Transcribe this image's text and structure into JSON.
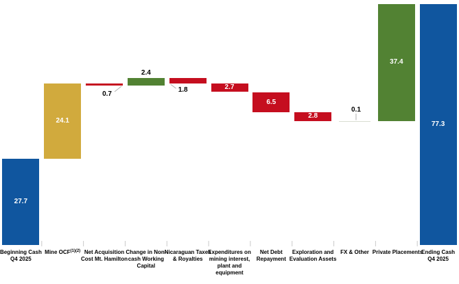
{
  "chart_data": {
    "type": "bar",
    "subtype": "waterfall",
    "title": "",
    "xlabel": "",
    "ylabel": "",
    "grid": false,
    "legend": "none",
    "baseline_value": 0,
    "axis_max": 78,
    "palette": {
      "total_blue": "#10569F",
      "ocf_gold": "#D1AA3D",
      "decrease_red": "#C50E1F",
      "increase_green": "#528233",
      "neutral_line": "#D9DDD1",
      "leader_gray": "#AFAFAF",
      "tick_gray": "#C9C9C9",
      "value_text_inside": "#FFFFFF",
      "value_text_outside": "#000000"
    },
    "items": [
      {
        "label_lines": [
          "Beginning Cash",
          "Q4 2025"
        ],
        "value": 27.7,
        "kind": "total",
        "color": "total_blue",
        "value_label": "inside",
        "value_text": "27.7"
      },
      {
        "label_lines": [
          "Mine OCF"
        ],
        "sup": "(1)(2)",
        "value": 24.1,
        "kind": "delta",
        "color": "ocf_gold",
        "value_label": "inside",
        "value_text": "24.1"
      },
      {
        "label_lines": [
          "Net Acquisition",
          "Cost Mt. Hamilton"
        ],
        "value": -0.7,
        "kind": "delta",
        "color": "decrease_red",
        "value_label": "below-leader-right",
        "value_text": "0.7"
      },
      {
        "label_lines": [
          "Change in Non-",
          "cash Working",
          "Capital"
        ],
        "value": 2.4,
        "kind": "delta",
        "color": "increase_green",
        "value_label": "above",
        "value_text": "2.4"
      },
      {
        "label_lines": [
          "Nicaraguan Taxes",
          "& Royalties"
        ],
        "value": -1.8,
        "kind": "delta",
        "color": "decrease_red",
        "value_label": "below-leader-left",
        "value_text": "1.8"
      },
      {
        "label_lines": [
          "Expenditures on",
          "mining interest,",
          "plant and",
          "equipment"
        ],
        "value": -2.7,
        "kind": "delta",
        "color": "decrease_red",
        "value_label": "inside",
        "value_text": "2.7"
      },
      {
        "label_lines": [
          "Net Debt",
          "Repayment"
        ],
        "value": -6.5,
        "kind": "delta",
        "color": "decrease_red",
        "value_label": "inside",
        "value_text": "6.5"
      },
      {
        "label_lines": [
          "Exploration and",
          "Evaluation Assets"
        ],
        "value": -2.8,
        "kind": "delta",
        "color": "decrease_red",
        "value_label": "inside",
        "value_text": "2.8"
      },
      {
        "label_lines": [
          "FX & Other"
        ],
        "value": 0.1,
        "kind": "delta",
        "color": "neutral_line",
        "value_label": "above-tick",
        "value_text": "0.1"
      },
      {
        "label_lines": [
          "Private Placements"
        ],
        "value": 37.4,
        "kind": "delta",
        "color": "increase_green",
        "value_label": "inside",
        "value_text": "37.4"
      },
      {
        "label_lines": [
          "Ending Cash",
          "Q4 2025"
        ],
        "value": 77.3,
        "kind": "total",
        "color": "total_blue",
        "value_label": "inside",
        "value_text": "77.3"
      }
    ]
  }
}
